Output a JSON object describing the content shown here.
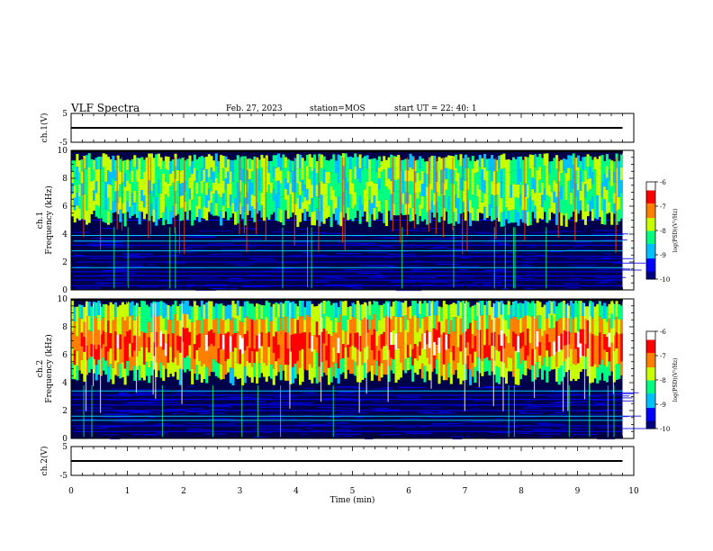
{
  "header": {
    "title": "VLF Spectra",
    "date": "Feb. 27, 2023",
    "station": "station=MOS",
    "start_ut": "start UT =  22: 40: 1"
  },
  "chart_data": [
    {
      "type": "line",
      "panel": "ch1-waveform",
      "ylabel": "ch.1(V)",
      "ylim": [
        -5,
        5
      ],
      "yticks": [
        "5",
        "-5"
      ],
      "trace_level": 0
    },
    {
      "type": "heatmap",
      "panel": "ch1-spectrogram",
      "ylabel": "ch.1\nFrequency (kHz)",
      "ylim": [
        0,
        10
      ],
      "yticks": [
        "0",
        "2",
        "4",
        "6",
        "8",
        "10"
      ],
      "colorbar": {
        "label": "log(PSD)(V²/Hz)",
        "range": [
          -10,
          -6
        ],
        "ticks": [
          "-10",
          "-9",
          "-8",
          "-7",
          "-6"
        ]
      },
      "emission_band_khz": [
        4.5,
        9.8
      ],
      "background_lines_khz": [
        0.3,
        0.7,
        1.0,
        1.3,
        1.6,
        2.0,
        2.4,
        2.8,
        3.2,
        3.5,
        3.9,
        5.0,
        6.0
      ]
    },
    {
      "type": "heatmap",
      "panel": "ch2-spectrogram",
      "ylabel": "ch.2\nFrequency (kHz)",
      "ylim": [
        0,
        10
      ],
      "yticks": [
        "0",
        "2",
        "4",
        "6",
        "8",
        "10"
      ],
      "colorbar": {
        "label": "log(PSD)(V²/Hz)",
        "range": [
          -10,
          -6
        ],
        "ticks": [
          "-10",
          "-9",
          "-8",
          "-7",
          "-6"
        ]
      },
      "emission_band_khz": [
        3.8,
        10.0
      ],
      "peak_band_khz": [
        5.5,
        8.0
      ],
      "background_lines_khz": [
        0.5,
        0.9,
        1.3,
        1.6,
        2.0,
        2.4,
        2.8,
        3.1,
        3.4
      ]
    },
    {
      "type": "line",
      "panel": "ch2-waveform",
      "ylabel": "ch.2(V)",
      "ylim": [
        -5,
        5
      ],
      "yticks": [
        "5",
        "-5"
      ],
      "trace_level": 0
    }
  ],
  "xaxis": {
    "label": "Time (min)",
    "range": [
      0,
      10
    ],
    "ticks": [
      "0",
      "1",
      "2",
      "3",
      "4",
      "5",
      "6",
      "7",
      "8",
      "9",
      "10"
    ],
    "data_end_min": 9.8
  },
  "colors": {
    "scale": [
      "#000080",
      "#0000ff",
      "#00c0ff",
      "#00ff80",
      "#c8ff00",
      "#ff8000",
      "#ff0000",
      "#ffffff"
    ],
    "frame": "#000000",
    "background_dark": "#000018"
  }
}
